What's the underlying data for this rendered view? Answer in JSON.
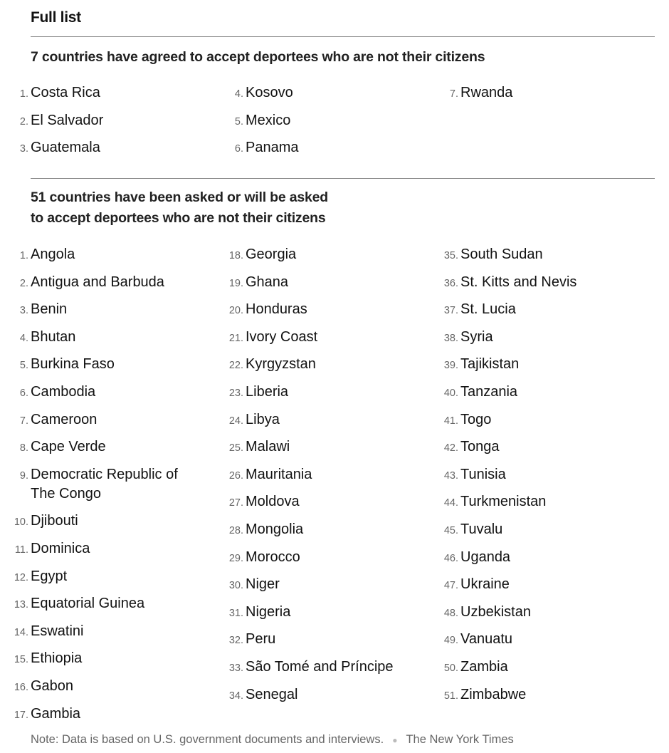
{
  "title": "Full list",
  "sections": [
    {
      "heading": "7 countries have agreed to accept deportees who are not their citizens",
      "items": [
        "Costa Rica",
        "El Salvador",
        "Guatemala",
        "Kosovo",
        "Mexico",
        "Panama",
        "Rwanda"
      ]
    },
    {
      "heading_line1": "51 countries have been asked or will be asked",
      "heading_line2": "to accept deportees who are not their citizens",
      "items": [
        "Angola",
        "Antigua and Barbuda",
        "Benin",
        "Bhutan",
        "Burkina Faso",
        "Cambodia",
        "Cameroon",
        "Cape Verde",
        "Democratic Republic of The Congo",
        "Djibouti",
        "Dominica",
        "Egypt",
        "Equatorial Guinea",
        "Eswatini",
        "Ethiopia",
        "Gabon",
        "Gambia",
        "Georgia",
        "Ghana",
        "Honduras",
        "Ivory Coast",
        "Kyrgyzstan",
        "Liberia",
        "Libya",
        "Malawi",
        "Mauritania",
        "Moldova",
        "Mongolia",
        "Morocco",
        "Niger",
        "Nigeria",
        "Peru",
        "São Tomé and Príncipe",
        "Senegal",
        "South Sudan",
        "St. Kitts and Nevis",
        "St. Lucia",
        "Syria",
        "Tajikistan",
        "Tanzania",
        "Togo",
        "Tonga",
        "Tunisia",
        "Turkmenistan",
        "Tuvalu",
        "Uganda",
        "Ukraine",
        "Uzbekistan",
        "Vanuatu",
        "Zambia",
        "Zimbabwe"
      ]
    }
  ],
  "note": "Note: Data is based on U.S. government documents and interviews.",
  "source": "The New York Times"
}
